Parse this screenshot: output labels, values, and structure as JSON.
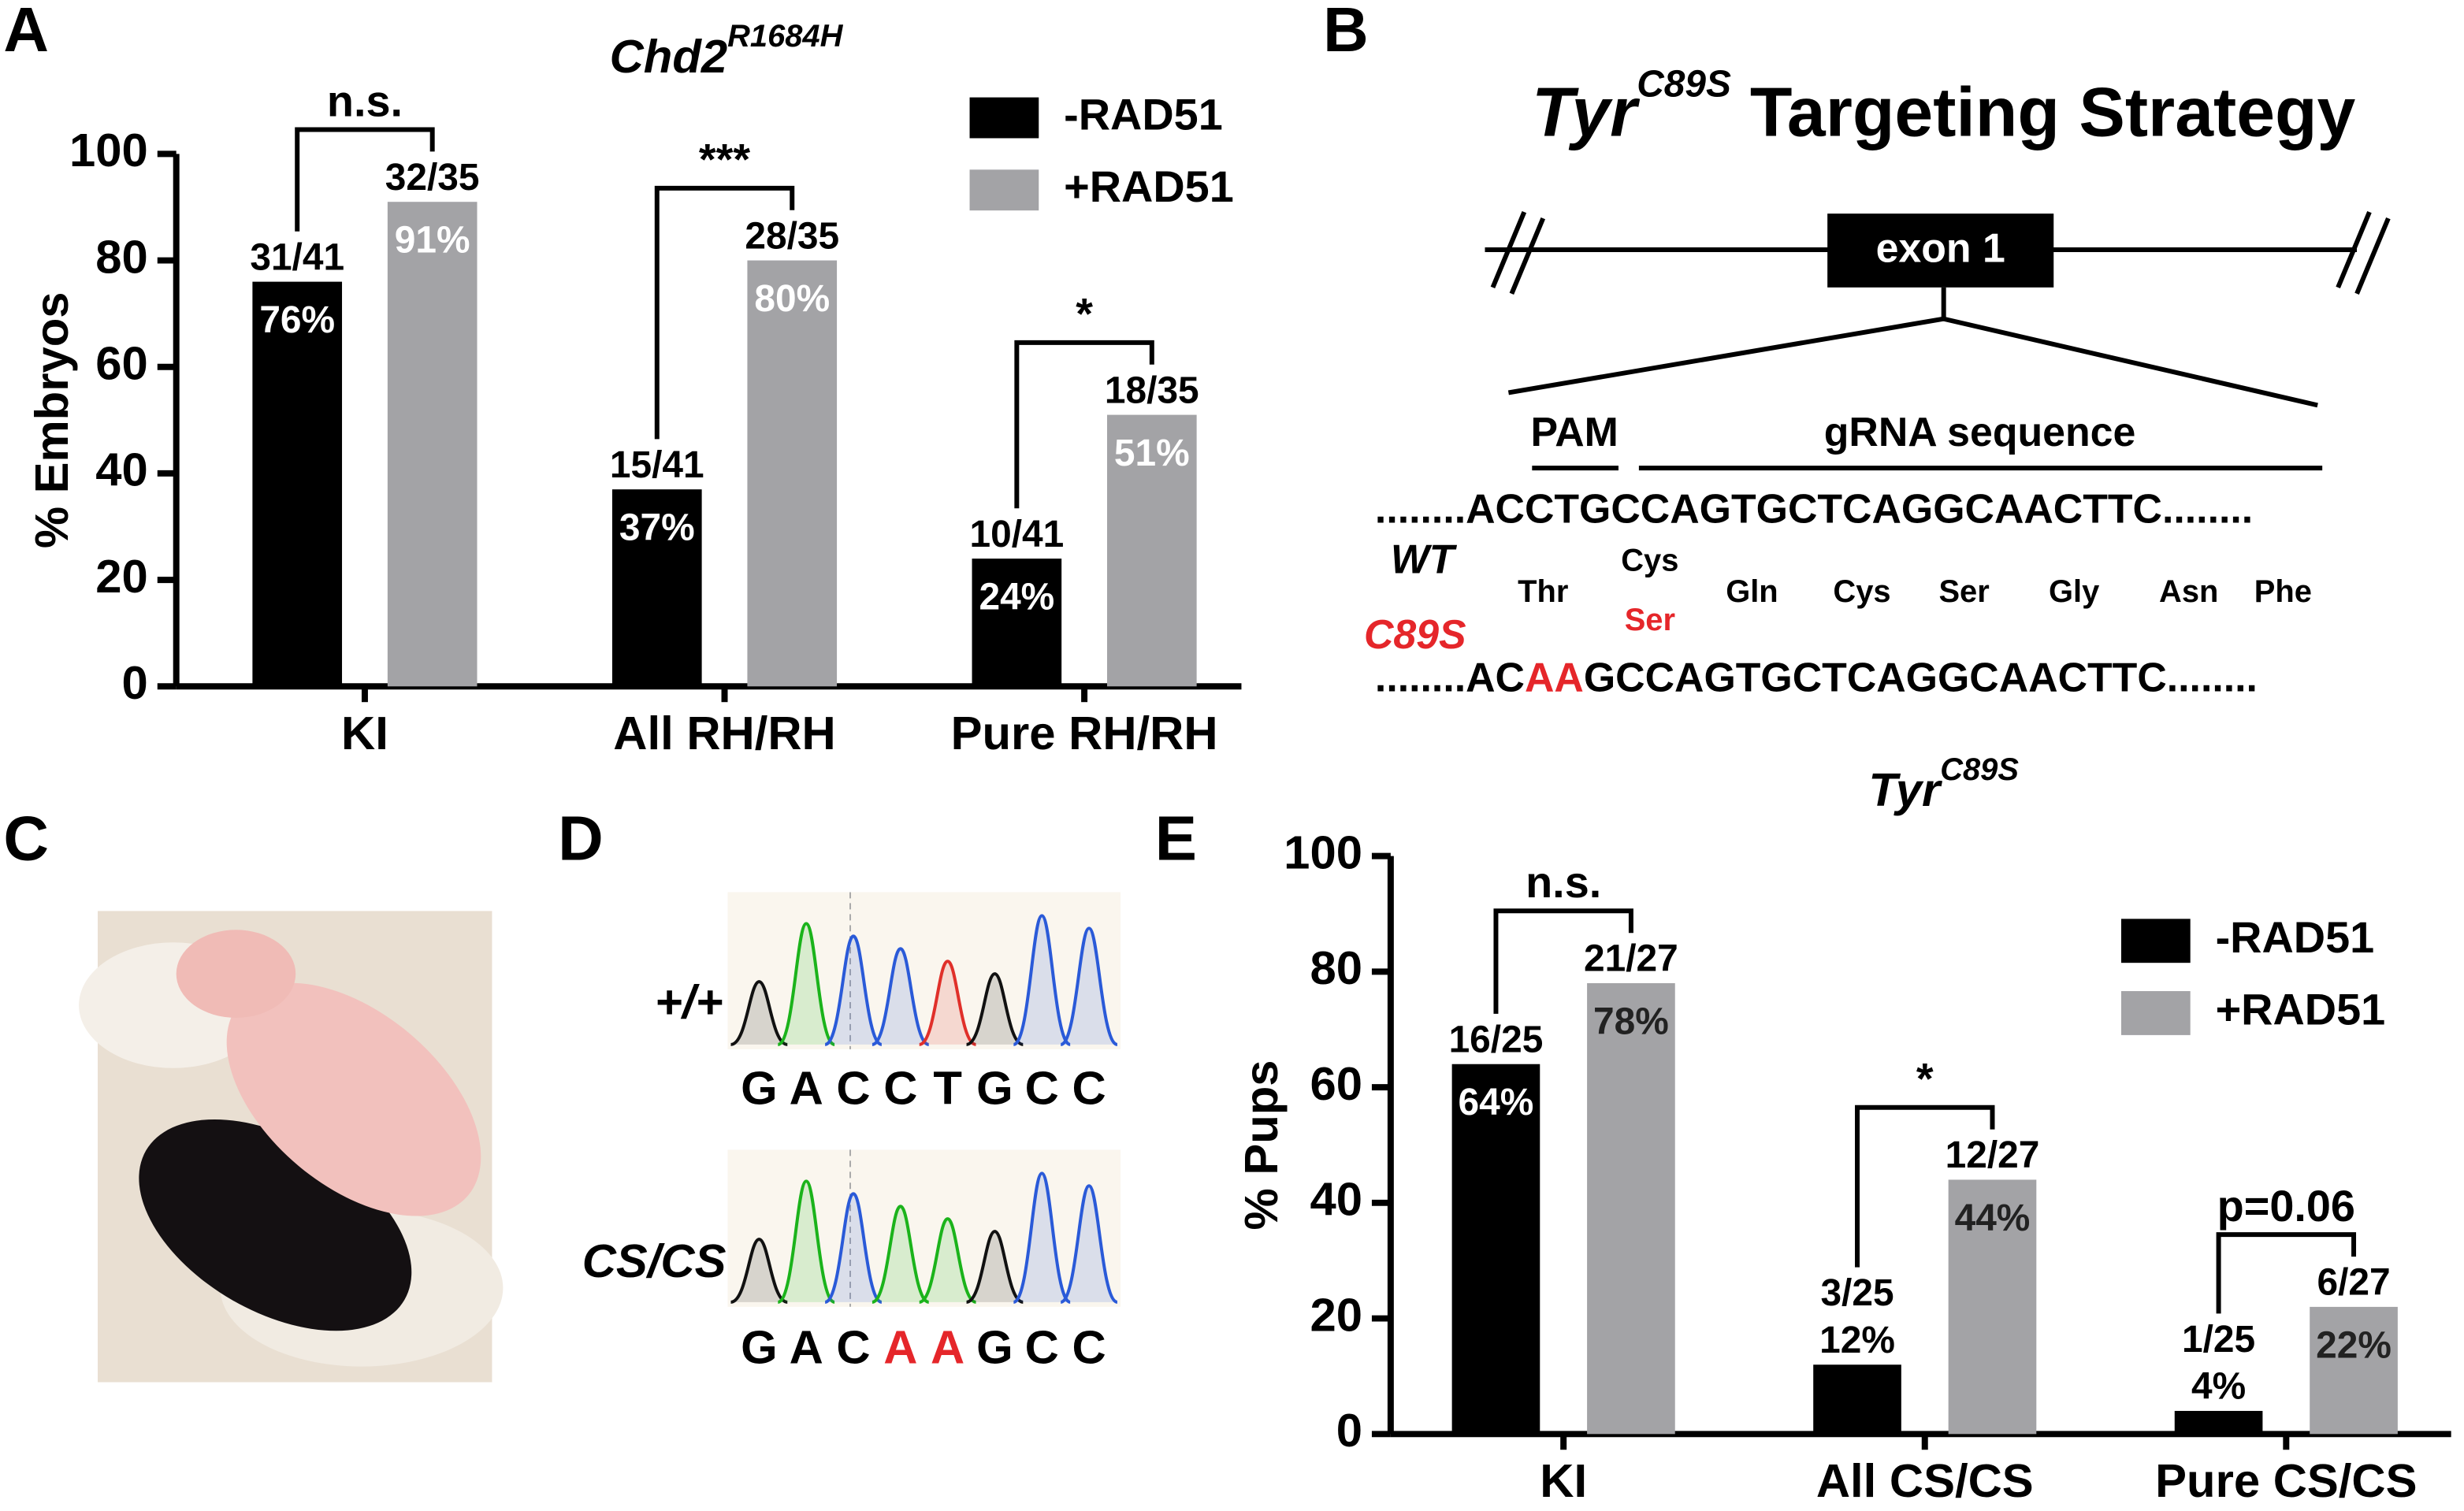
{
  "panel_labels": [
    "A",
    "B",
    "C",
    "D",
    "E"
  ],
  "chart_data": [
    {
      "type": "bar",
      "title": "Chd2",
      "title_superscript": "R1684H",
      "y_label": "% Embryos",
      "categories": [
        "KI",
        "All RH/RH",
        "Pure RH/RH"
      ],
      "series": [
        {
          "name": "-RAD51",
          "color": "#000000",
          "values": [
            76,
            37,
            24
          ],
          "value_labels": [
            "76%",
            "37%",
            "24%"
          ],
          "fractions": [
            "31/41",
            "15/41",
            "10/41"
          ]
        },
        {
          "name": "+RAD51",
          "color": "#a3a3a6",
          "values": [
            91,
            80,
            51
          ],
          "value_labels": [
            "91%",
            "80%",
            "51%"
          ],
          "fractions": [
            "32/35",
            "28/35",
            "18/35"
          ]
        }
      ],
      "significance": [
        "n.s.",
        "***",
        "*"
      ],
      "ylim": [
        0,
        100
      ],
      "yticks": [
        0,
        20,
        40,
        60,
        80,
        100
      ],
      "legend": "upper right"
    },
    {
      "type": "bar",
      "title": "Tyr",
      "title_superscript": "C89S",
      "y_label": "% Pups",
      "categories": [
        "KI",
        "All CS/CS",
        "Pure CS/CS"
      ],
      "series": [
        {
          "name": "-RAD51",
          "color": "#000000",
          "values": [
            64,
            12,
            4
          ],
          "value_labels": [
            "64%",
            "12%",
            "4%"
          ],
          "fractions": [
            "16/25",
            "3/25",
            "1/25"
          ]
        },
        {
          "name": "+RAD51",
          "color": "#a3a3a6",
          "values": [
            78,
            44,
            22
          ],
          "value_labels": [
            "78%",
            "44%",
            "22%"
          ],
          "fractions": [
            "21/27",
            "12/27",
            "6/27"
          ]
        }
      ],
      "significance": [
        "n.s.",
        "*",
        "p=0.06"
      ],
      "ylim": [
        0,
        100
      ],
      "yticks": [
        0,
        20,
        40,
        60,
        80,
        100
      ],
      "legend": "upper right"
    }
  ],
  "panel_b": {
    "title": "Tyr",
    "title_superscript": "C89S",
    "title_rest": "Targeting Strategy",
    "exon": "exon 1",
    "pam": "PAM",
    "grna": "gRNA sequence",
    "wt_label": "WT",
    "wt_sequence": "........ACCTGCCAGTGCTCAGGCAACTTC........",
    "amino_acids": [
      "Thr",
      "Cys",
      "Gln",
      "Cys",
      "Ser",
      "Gly",
      "Asn",
      "Phe"
    ],
    "mutant_label": "C89S",
    "mutant_amino_acid": "Ser",
    "mutant_sequence": [
      "........AC",
      "AA",
      "GCCAGTGCTCAGGCAACTTC........"
    ]
  },
  "panel_d": {
    "wt_label": "+/+",
    "wt_bases": [
      "G",
      "A",
      "C",
      "C",
      "T",
      "G",
      "C",
      "C"
    ],
    "mutant_label": "CS/CS",
    "mutant_bases": [
      "G",
      "A",
      "C",
      "A",
      "A",
      "G",
      "C",
      "C"
    ]
  }
}
